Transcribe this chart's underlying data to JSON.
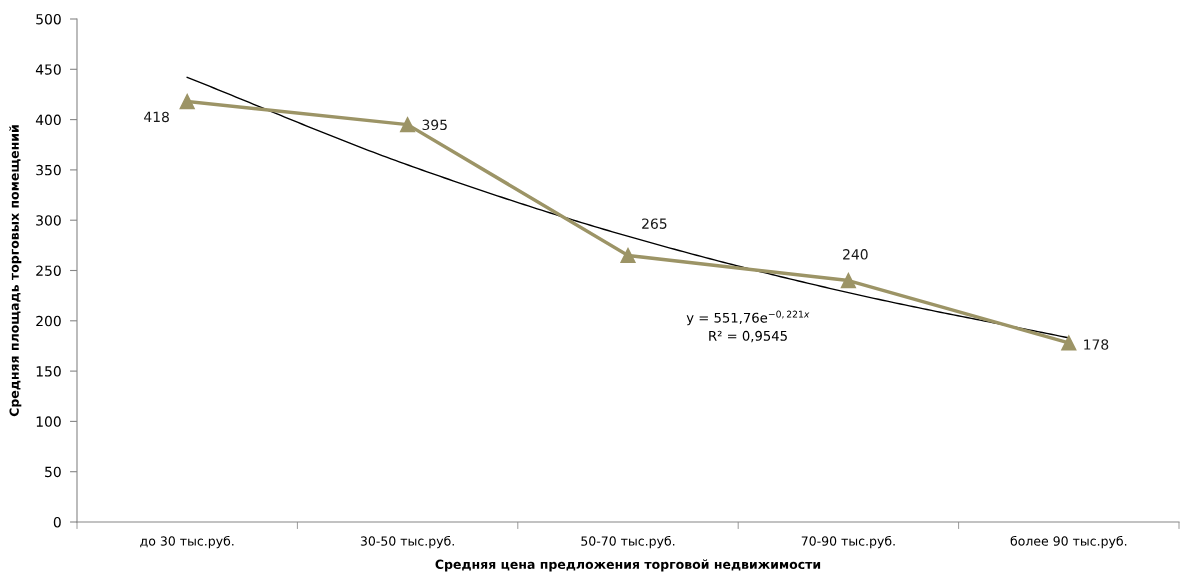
{
  "chart_data": {
    "type": "line",
    "xlabel": "Средняя цена предложения торговой недвижимости",
    "ylabel": "Средняя площадь торговых помещений",
    "categories": [
      "до 30 тыс.руб.",
      "30-50 тыс.руб.",
      "50-70 тыс.руб.",
      "70-90 тыс.руб.",
      "более 90 тыс.руб."
    ],
    "series": [
      {
        "color": "#9c9466",
        "values": [
          418,
          395,
          265,
          240,
          178
        ],
        "value_labels": [
          "418",
          "395",
          "265",
          "240",
          "178"
        ],
        "marker": "triangle",
        "line_style": "solid"
      },
      {
        "color": "#000000",
        "values": [
          442,
          355,
          284,
          228,
          183
        ],
        "marker": "none",
        "line_style": "solid"
      }
    ],
    "ylim": [
      0,
      500
    ],
    "yticks": [
      0,
      50,
      100,
      150,
      200,
      250,
      300,
      350,
      400,
      450,
      500
    ],
    "grid": false,
    "annotations": [
      "y = 551,76e$^{−0,221x}$",
      "R² = 0,9545"
    ]
  }
}
